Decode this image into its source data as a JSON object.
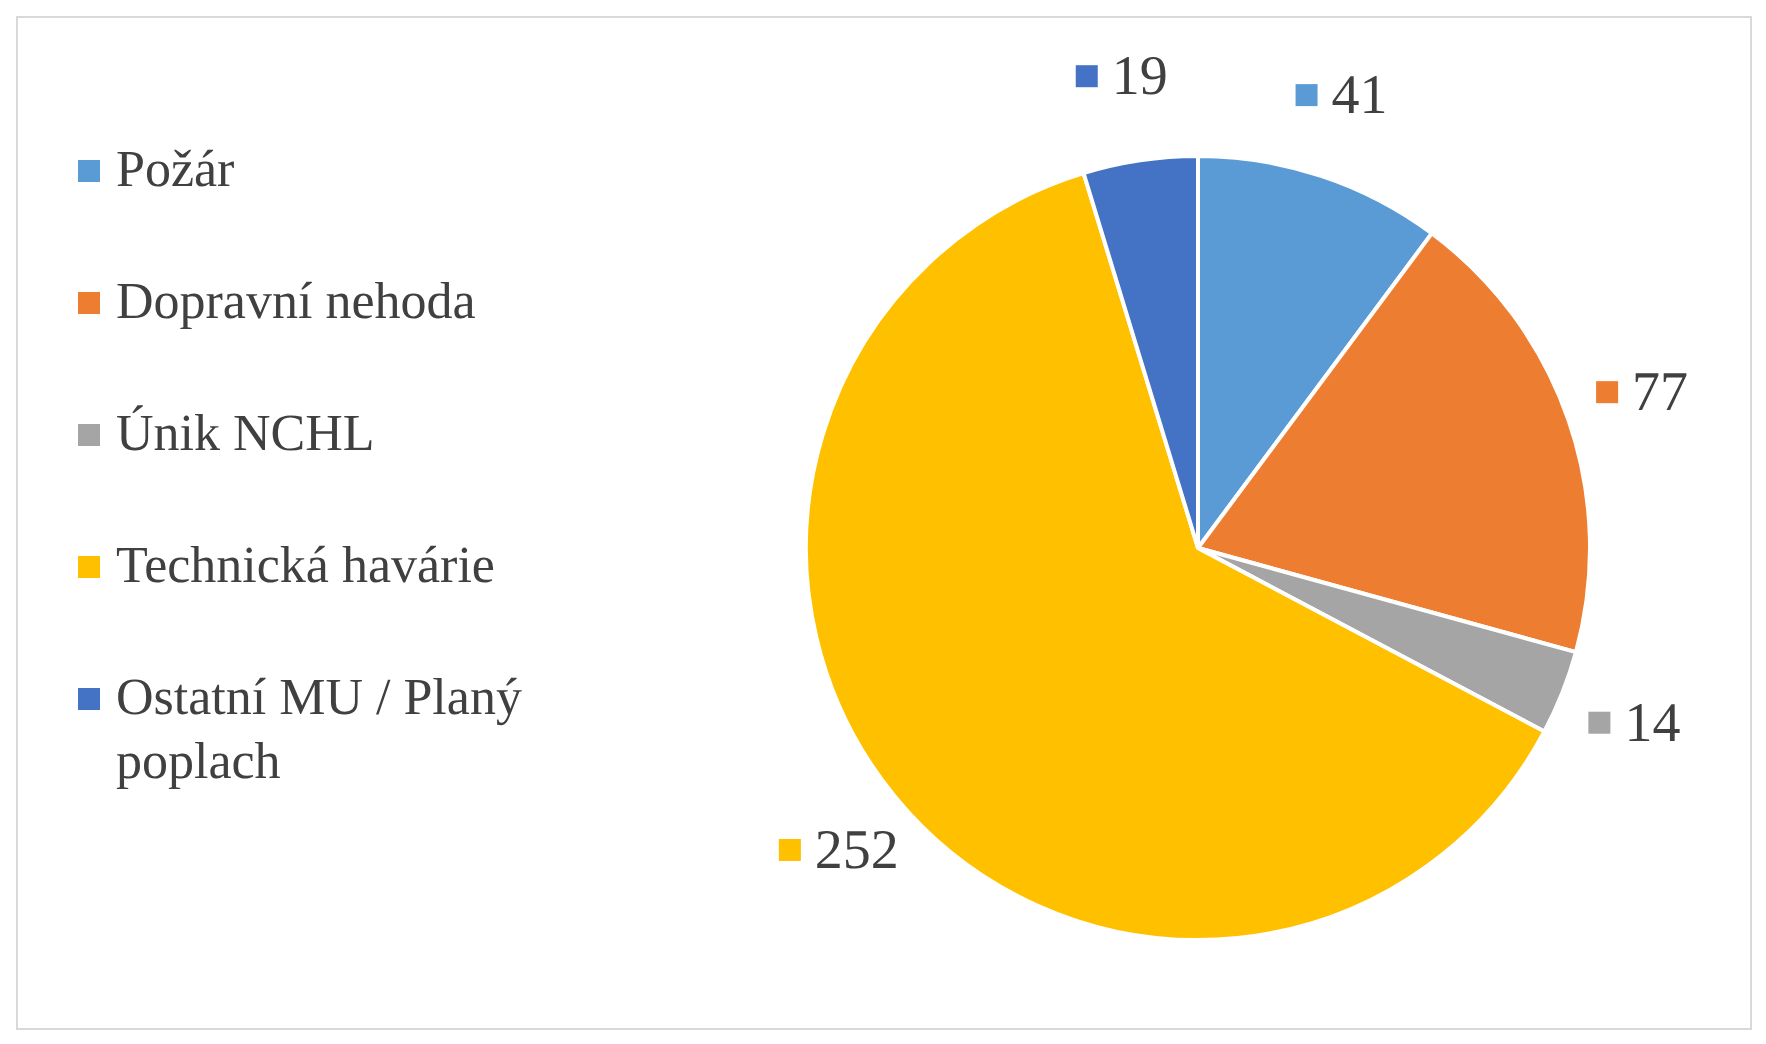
{
  "chart_data": {
    "type": "pie",
    "categories": [
      "Požár",
      "Dopravní nehoda",
      "Únik NCHL",
      "Technická havárie",
      "Ostatní MU / Planý poplach"
    ],
    "values": [
      41,
      77,
      14,
      252,
      19
    ],
    "colors": [
      "#5b9bd5",
      "#ed7d31",
      "#a5a5a5",
      "#ffc000",
      "#4472c4"
    ],
    "data_labels": true,
    "legend": "left"
  }
}
